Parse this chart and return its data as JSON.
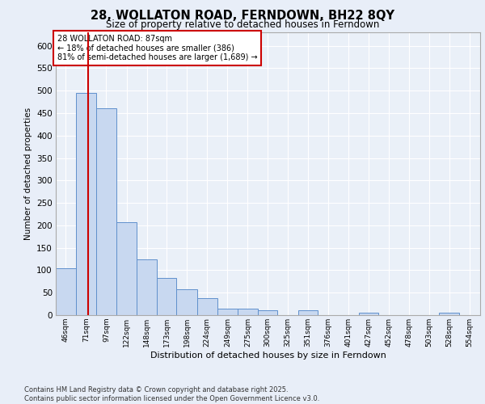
{
  "title_line1": "28, WOLLATON ROAD, FERNDOWN, BH22 8QY",
  "title_line2": "Size of property relative to detached houses in Ferndown",
  "xlabel": "Distribution of detached houses by size in Ferndown",
  "ylabel": "Number of detached properties",
  "footer_line1": "Contains HM Land Registry data © Crown copyright and database right 2025.",
  "footer_line2": "Contains public sector information licensed under the Open Government Licence v3.0.",
  "bar_labels": [
    "46sqm",
    "71sqm",
    "97sqm",
    "122sqm",
    "148sqm",
    "173sqm",
    "198sqm",
    "224sqm",
    "249sqm",
    "275sqm",
    "300sqm",
    "325sqm",
    "351sqm",
    "376sqm",
    "401sqm",
    "427sqm",
    "452sqm",
    "478sqm",
    "503sqm",
    "528sqm",
    "554sqm"
  ],
  "bar_heights": [
    105,
    495,
    460,
    207,
    125,
    82,
    58,
    37,
    15,
    15,
    10,
    0,
    10,
    0,
    0,
    5,
    0,
    0,
    0,
    5,
    0
  ],
  "bar_color": "#c8d8f0",
  "bar_edge_color": "#6090cc",
  "vline_color": "#cc0000",
  "vline_label_idx": 1,
  "annotation_text": "28 WOLLATON ROAD: 87sqm\n← 18% of detached houses are smaller (386)\n81% of semi-detached houses are larger (1,689) →",
  "annotation_box_color": "#cc0000",
  "ylim_max": 630,
  "yticks": [
    0,
    50,
    100,
    150,
    200,
    250,
    300,
    350,
    400,
    450,
    500,
    550,
    600
  ],
  "bg_color": "#e8eef8",
  "plot_bg_color": "#eaf0f8",
  "grid_color": "#ffffff"
}
